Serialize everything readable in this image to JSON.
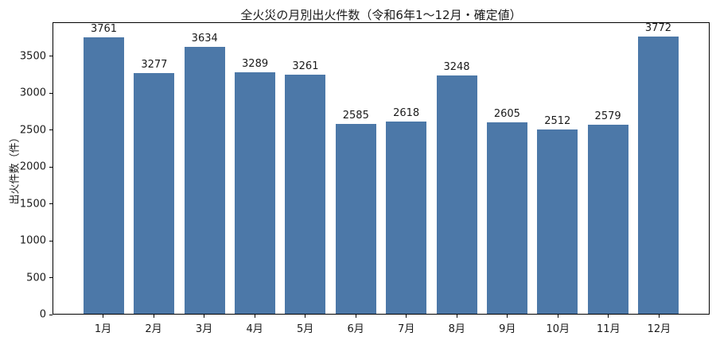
{
  "chart_data": {
    "type": "bar",
    "title": "全火災の月別出火件数（令和6年1〜12月・確定値）",
    "ylabel": "出火件数（件）",
    "xlabel": "",
    "categories": [
      "1月",
      "2月",
      "3月",
      "4月",
      "5月",
      "6月",
      "7月",
      "8月",
      "9月",
      "10月",
      "11月",
      "12月"
    ],
    "values": [
      3761,
      3277,
      3634,
      3289,
      3261,
      2585,
      2618,
      3248,
      2605,
      2512,
      2579,
      3772
    ],
    "yticks": [
      0,
      500,
      1000,
      1500,
      2000,
      2500,
      3000,
      3500
    ],
    "ylim": [
      0,
      3960
    ],
    "grid": false,
    "legend": null,
    "value_labels": true,
    "colors": {
      "bar": "#4C78A8",
      "frame": "#000000",
      "text": "#1a1a1a",
      "background": "#ffffff"
    }
  }
}
